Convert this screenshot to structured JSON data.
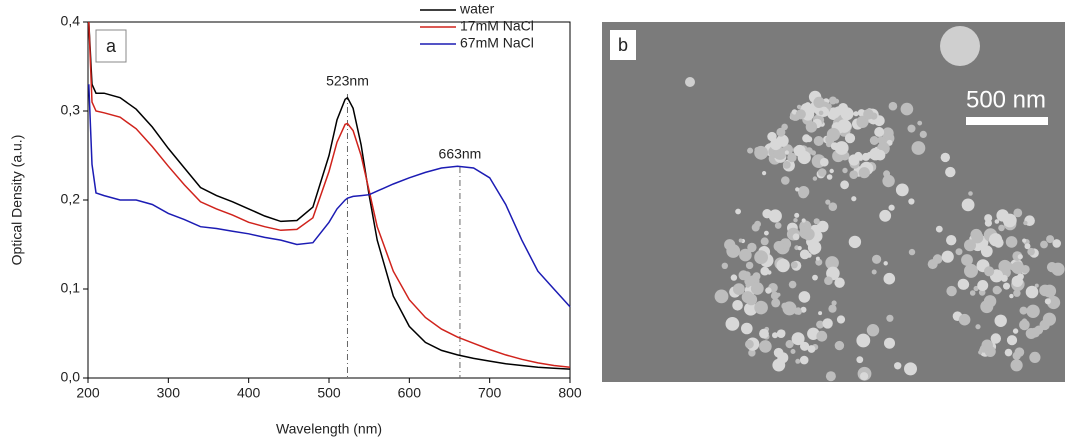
{
  "chart_data": {
    "type": "line",
    "panel_label": "a",
    "xlabel": "Wavelength (nm)",
    "ylabel": "Optical Density (a.u.)",
    "x": [
      201,
      205,
      210,
      220,
      240,
      260,
      280,
      300,
      320,
      340,
      360,
      380,
      400,
      420,
      440,
      460,
      480,
      500,
      510,
      520,
      523,
      530,
      540,
      550,
      560,
      580,
      600,
      620,
      640,
      660,
      680,
      700,
      720,
      740,
      760,
      780,
      800
    ],
    "series": [
      {
        "name": "water",
        "color": "#000000",
        "values": [
          0.4,
          0.33,
          0.32,
          0.32,
          0.315,
          0.302,
          0.282,
          0.258,
          0.236,
          0.214,
          0.205,
          0.198,
          0.19,
          0.182,
          0.176,
          0.177,
          0.192,
          0.25,
          0.29,
          0.313,
          0.315,
          0.303,
          0.262,
          0.205,
          0.155,
          0.092,
          0.058,
          0.04,
          0.031,
          0.026,
          0.022,
          0.019,
          0.016,
          0.014,
          0.012,
          0.011,
          0.01
        ]
      },
      {
        "name": "17mM NaCl",
        "color": "#d0231c",
        "values": [
          0.4,
          0.31,
          0.3,
          0.298,
          0.293,
          0.28,
          0.26,
          0.238,
          0.217,
          0.198,
          0.19,
          0.183,
          0.175,
          0.17,
          0.166,
          0.167,
          0.18,
          0.232,
          0.265,
          0.285,
          0.286,
          0.278,
          0.25,
          0.21,
          0.17,
          0.12,
          0.088,
          0.068,
          0.055,
          0.046,
          0.039,
          0.032,
          0.026,
          0.021,
          0.017,
          0.014,
          0.012
        ]
      },
      {
        "name": "67mM NaCl",
        "color": "#1c1cb4",
        "values": [
          0.33,
          0.24,
          0.208,
          0.205,
          0.2,
          0.2,
          0.195,
          0.185,
          0.178,
          0.17,
          0.168,
          0.165,
          0.162,
          0.158,
          0.155,
          0.15,
          0.152,
          0.175,
          0.19,
          0.2,
          0.202,
          0.204,
          0.205,
          0.206,
          0.21,
          0.218,
          0.225,
          0.231,
          0.236,
          0.238,
          0.236,
          0.225,
          0.195,
          0.155,
          0.12,
          0.1,
          0.08
        ]
      }
    ],
    "annotations": [
      {
        "x": 523,
        "text": "523nm"
      },
      {
        "x": 663,
        "text": "663nm"
      }
    ],
    "xlim": [
      200,
      800
    ],
    "xticks": [
      200,
      300,
      400,
      500,
      600,
      700,
      800
    ],
    "ylim": [
      0,
      0.4
    ],
    "yticks": [
      {
        "value": 0,
        "label": "0,0"
      },
      {
        "value": 0.1,
        "label": "0,1"
      },
      {
        "value": 0.2,
        "label": "0,2"
      },
      {
        "value": 0.3,
        "label": "0,3"
      },
      {
        "value": 0.4,
        "label": "0,4"
      }
    ],
    "legend": "upper right"
  },
  "image_panel": {
    "panel_label": "b",
    "scale_bar": "500 nm"
  }
}
